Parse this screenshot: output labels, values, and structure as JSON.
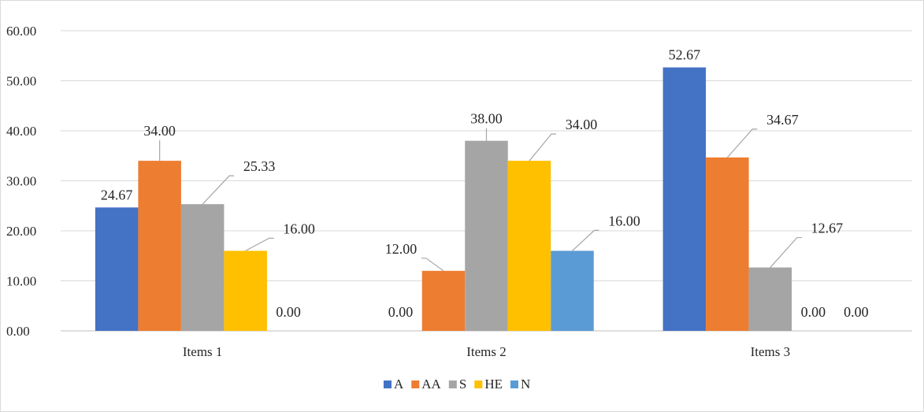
{
  "chart_data": {
    "type": "bar",
    "title": "",
    "xlabel": "",
    "ylabel": "",
    "categories": [
      "Items 1",
      "Items 2",
      "Items 3"
    ],
    "ylim": [
      0,
      60
    ],
    "yticks": [
      "0.00",
      "10.00",
      "20.00",
      "30.00",
      "40.00",
      "50.00",
      "60.00"
    ],
    "grid": true,
    "legend_position": "bottom",
    "series": [
      {
        "name": "A",
        "color": "#4472C4",
        "values": [
          24.67,
          0.0,
          52.67
        ],
        "labels": [
          "24.67",
          "0.00",
          "52.67"
        ]
      },
      {
        "name": "AA",
        "color": "#ED7D31",
        "values": [
          34.0,
          12.0,
          34.67
        ],
        "labels": [
          "34.00",
          "12.00",
          "34.67"
        ]
      },
      {
        "name": "S",
        "color": "#A5A5A5",
        "values": [
          25.33,
          38.0,
          12.67
        ],
        "labels": [
          "25.33",
          "38.00",
          "12.67"
        ]
      },
      {
        "name": "HE",
        "color": "#FFC000",
        "values": [
          16.0,
          34.0,
          0.0
        ],
        "labels": [
          "16.00",
          "34.00",
          "0.00"
        ]
      },
      {
        "name": "N",
        "color": "#5B9BD5",
        "values": [
          0.0,
          16.0,
          0.0
        ],
        "labels": [
          "0.00",
          "16.00",
          "0.00"
        ]
      }
    ]
  }
}
